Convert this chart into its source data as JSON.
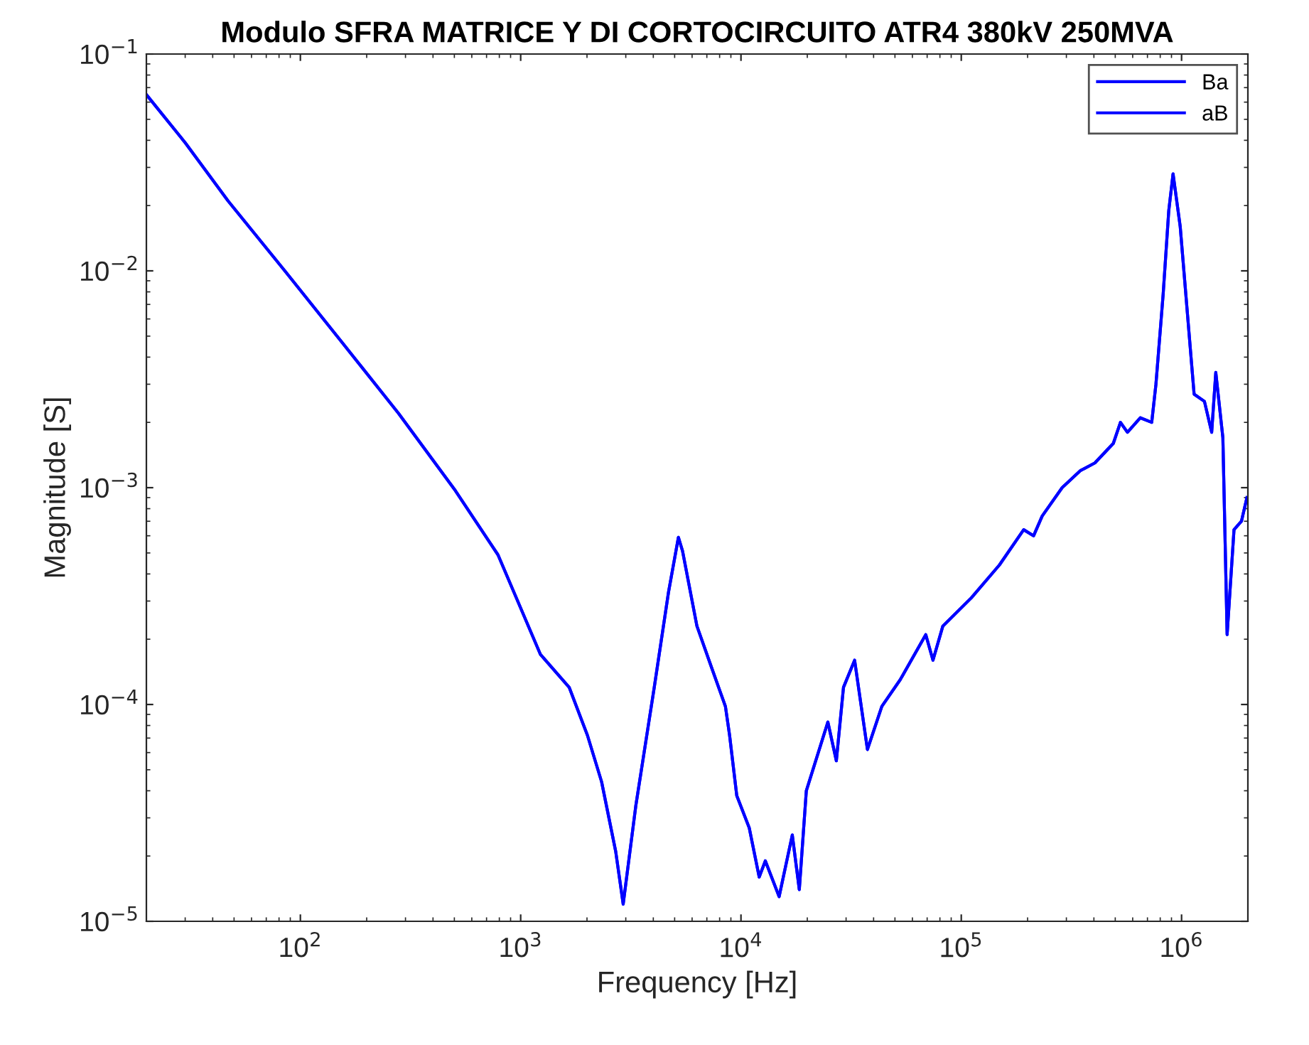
{
  "chart_data": {
    "type": "line",
    "title": "Modulo SFRA MATRICE Y DI CORTOCIRCUITO ATR4 380kV 250MVA",
    "xlabel": "Frequency [Hz]",
    "ylabel": "Magnitude [S]",
    "x": [
      20,
      30,
      47,
      85,
      154,
      279,
      505,
      789,
      1230,
      1660,
      2010,
      2330,
      2700,
      2920,
      3330,
      4040,
      4690,
      5200,
      5430,
      6310,
      7320,
      8500,
      8880,
      9570,
      10900,
      12100,
      12900,
      14900,
      17100,
      18400,
      19800,
      24800,
      27100,
      29200,
      32800,
      37500,
      43600,
      52800,
      69000,
      74400,
      82500,
      111000,
      149000,
      192000,
      213000,
      233000,
      287000,
      348000,
      404000,
      490000,
      528000,
      568000,
      650000,
      732000,
      765000,
      825000,
      875000,
      915000,
      986000,
      1140000,
      1270000,
      1370000,
      1430000,
      1540000,
      1610000,
      1730000,
      1870000,
      1980000
    ],
    "series": [
      {
        "name": "Ba",
        "color": "#0000ff",
        "values": [
          0.065,
          0.039,
          0.021,
          0.01,
          0.0047,
          0.0022,
          0.00097,
          0.00049,
          0.00017,
          0.00012,
          7.2e-05,
          4.4e-05,
          2.1e-05,
          1.2e-05,
          3.4e-05,
          0.00012,
          0.00033,
          0.00059,
          0.00051,
          0.00023,
          0.00015,
          9.8e-05,
          7.2e-05,
          3.8e-05,
          2.7e-05,
          1.6e-05,
          1.9e-05,
          1.3e-05,
          2.5e-05,
          1.4e-05,
          4e-05,
          8.3e-05,
          5.5e-05,
          0.00012,
          0.00016,
          6.2e-05,
          9.8e-05,
          0.00013,
          0.00021,
          0.00016,
          0.00023,
          0.00031,
          0.00044,
          0.00064,
          0.0006,
          0.00074,
          0.001,
          0.0012,
          0.0013,
          0.0016,
          0.002,
          0.0018,
          0.0021,
          0.002,
          0.003,
          0.0078,
          0.019,
          0.028,
          0.016,
          0.0027,
          0.0025,
          0.0018,
          0.0034,
          0.0017,
          0.00021,
          0.00064,
          0.0007,
          0.0009
        ]
      },
      {
        "name": "aB",
        "color": "#0000ff",
        "values": [
          0.065,
          0.039,
          0.021,
          0.01,
          0.0047,
          0.0022,
          0.00097,
          0.00049,
          0.00017,
          0.00012,
          7.2e-05,
          4.4e-05,
          2.1e-05,
          1.2e-05,
          3.4e-05,
          0.00012,
          0.00033,
          0.00059,
          0.00051,
          0.00023,
          0.00015,
          9.8e-05,
          7.2e-05,
          3.8e-05,
          2.7e-05,
          1.6e-05,
          1.9e-05,
          1.3e-05,
          2.5e-05,
          1.4e-05,
          4e-05,
          8.3e-05,
          5.5e-05,
          0.00012,
          0.00016,
          6.2e-05,
          9.8e-05,
          0.00013,
          0.00021,
          0.00016,
          0.00023,
          0.00031,
          0.00044,
          0.00064,
          0.0006,
          0.00074,
          0.001,
          0.0012,
          0.0013,
          0.0016,
          0.002,
          0.0018,
          0.0021,
          0.002,
          0.003,
          0.0078,
          0.019,
          0.028,
          0.016,
          0.0027,
          0.0025,
          0.0018,
          0.0034,
          0.0017,
          0.00021,
          0.00064,
          0.0007,
          0.0009
        ]
      }
    ],
    "log": "xy",
    "xlim": [
      20,
      2000000
    ],
    "ylim": [
      1e-05,
      0.1
    ],
    "xticks": [
      {
        "value": 100,
        "label": "10$^{2}$"
      },
      {
        "value": 1000,
        "label": "10$^{3}$"
      },
      {
        "value": 10000,
        "label": "10$^{4}$"
      },
      {
        "value": 100000,
        "label": "10$^{5}$"
      },
      {
        "value": 1000000,
        "label": "10$^{6}$"
      }
    ],
    "yticks": [
      {
        "value": 1e-05,
        "label": "10$^{−5}$"
      },
      {
        "value": 0.0001,
        "label": "10$^{−4}$"
      },
      {
        "value": 0.001,
        "label": "10$^{−3}$"
      },
      {
        "value": 0.01,
        "label": "10$^{−2}$"
      },
      {
        "value": 0.1,
        "label": "10$^{−1}$"
      }
    ],
    "grid": false,
    "legend": "top right",
    "line_style": "solid",
    "marker": "none"
  }
}
